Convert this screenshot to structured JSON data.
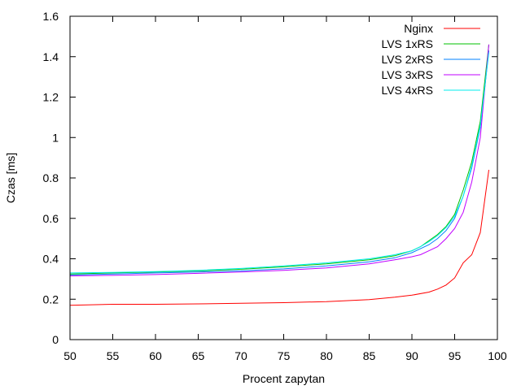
{
  "chart_data": {
    "type": "line",
    "title": "",
    "xlabel": "Procent zapytan",
    "ylabel": "Czas [ms]",
    "xlim": [
      50,
      100
    ],
    "ylim": [
      0,
      1.6
    ],
    "xticks": [
      "50",
      "55",
      "60",
      "65",
      "70",
      "75",
      "80",
      "85",
      "90",
      "95",
      "100"
    ],
    "yticks": [
      "0",
      "0.2",
      "0.4",
      "0.6",
      "0.8",
      "1",
      "1.2",
      "1.4",
      "1.6"
    ],
    "grid": false,
    "legend_position": "top-right",
    "series": [
      {
        "name": "Nginx",
        "color": "#ff0000",
        "x": [
          50,
          55,
          60,
          65,
          70,
          75,
          80,
          85,
          88,
          90,
          92,
          93,
          94,
          95,
          96,
          97,
          98,
          99
        ],
        "y": [
          0.17,
          0.175,
          0.175,
          0.177,
          0.18,
          0.183,
          0.188,
          0.198,
          0.21,
          0.22,
          0.235,
          0.25,
          0.27,
          0.305,
          0.38,
          0.42,
          0.53,
          0.84
        ]
      },
      {
        "name": "LVS 1xRS",
        "color": "#00c000",
        "x": [
          50,
          55,
          60,
          65,
          70,
          75,
          80,
          85,
          88,
          90,
          91,
          92,
          93,
          94,
          95,
          96,
          97,
          98,
          99
        ],
        "y": [
          0.325,
          0.33,
          0.335,
          0.34,
          0.348,
          0.36,
          0.375,
          0.395,
          0.415,
          0.44,
          0.46,
          0.49,
          0.52,
          0.56,
          0.62,
          0.74,
          0.88,
          1.08,
          1.46
        ]
      },
      {
        "name": "LVS 2xRS",
        "color": "#0080ff",
        "x": [
          50,
          55,
          60,
          65,
          70,
          75,
          80,
          85,
          88,
          90,
          91,
          92,
          93,
          94,
          95,
          96,
          97,
          98,
          99
        ],
        "y": [
          0.32,
          0.325,
          0.33,
          0.335,
          0.34,
          0.35,
          0.365,
          0.385,
          0.405,
          0.43,
          0.45,
          0.47,
          0.5,
          0.54,
          0.6,
          0.71,
          0.85,
          1.05,
          1.43
        ]
      },
      {
        "name": "LVS 3xRS",
        "color": "#c000ff",
        "x": [
          50,
          55,
          60,
          65,
          70,
          75,
          80,
          85,
          88,
          90,
          91,
          92,
          93,
          94,
          95,
          96,
          97,
          98,
          99
        ],
        "y": [
          0.315,
          0.318,
          0.322,
          0.328,
          0.335,
          0.343,
          0.355,
          0.375,
          0.395,
          0.41,
          0.42,
          0.44,
          0.46,
          0.5,
          0.55,
          0.63,
          0.78,
          1.0,
          1.46
        ]
      },
      {
        "name": "LVS 4xRS",
        "color": "#00eeee",
        "x": [
          50,
          55,
          60,
          65,
          70,
          75,
          80,
          85,
          88,
          90,
          91,
          92,
          93,
          94,
          95,
          96,
          97,
          98,
          99
        ],
        "y": [
          0.33,
          0.333,
          0.337,
          0.343,
          0.352,
          0.365,
          0.38,
          0.4,
          0.42,
          0.44,
          0.46,
          0.485,
          0.515,
          0.555,
          0.61,
          0.71,
          0.86,
          1.06,
          1.42
        ]
      }
    ]
  }
}
